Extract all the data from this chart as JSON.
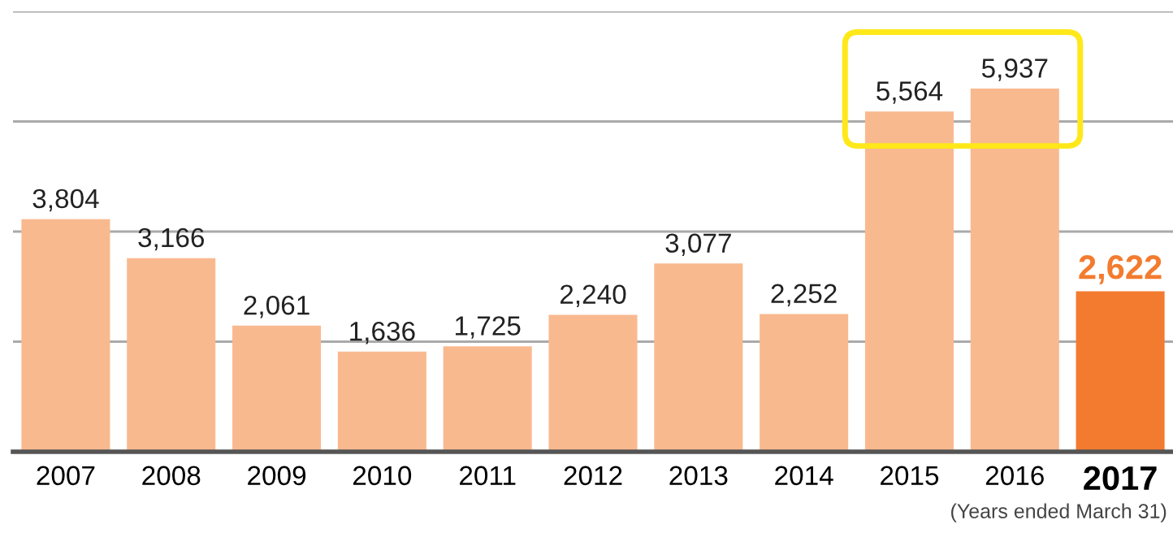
{
  "chart_data": {
    "type": "bar",
    "categories": [
      "2007",
      "2008",
      "2009",
      "2010",
      "2011",
      "2012",
      "2013",
      "2014",
      "2015",
      "2016",
      "2017"
    ],
    "values": [
      3804,
      3166,
      2061,
      1636,
      1725,
      2240,
      3077,
      2252,
      5564,
      5937,
      2622
    ],
    "colors": [
      "#f9b98f",
      "#f9b98f",
      "#f9b98f",
      "#f9b98f",
      "#f9b98f",
      "#f9b98f",
      "#f9b98f",
      "#f9b98f",
      "#f9b98f",
      "#f9b98f",
      "#f37b2f"
    ],
    "value_labels": [
      "3,804",
      "3,166",
      "2,061",
      "1,636",
      "1,725",
      "2,240",
      "3,077",
      "2,252",
      "5,564",
      "5,937",
      "2,622"
    ],
    "ylim": [
      0,
      7200
    ],
    "yticks": [
      {
        "value": 1800,
        "label": null
      },
      {
        "value": 3600,
        "label": null
      },
      {
        "value": 5400,
        "label": null
      },
      {
        "value": 7200,
        "label": null
      }
    ],
    "grid": "y",
    "tick_labels": "x",
    "annotations": [
      "(Years ended March 31)"
    ]
  }
}
